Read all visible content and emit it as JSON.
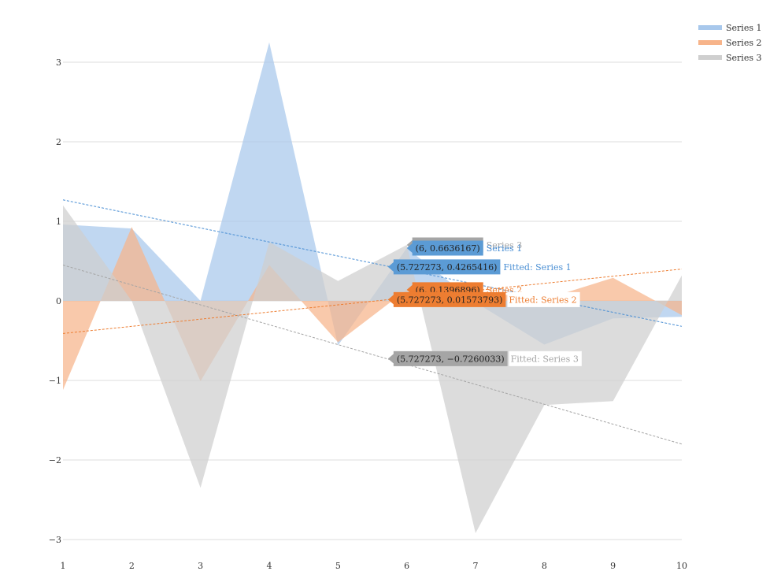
{
  "chart_data": {
    "type": "area",
    "x": [
      1,
      2,
      3,
      4,
      5,
      6,
      7,
      8,
      9,
      10
    ],
    "xlim": [
      1,
      10
    ],
    "ylim": [
      -3.3,
      3.3
    ],
    "y_ticks": [
      3,
      2,
      1,
      0,
      -1,
      -2,
      -3
    ],
    "y_tick_labels": [
      "3",
      "2",
      "1",
      "0",
      "−1",
      "−2",
      "−3"
    ],
    "x_ticks": [
      1,
      2,
      3,
      4,
      5,
      6,
      7,
      8,
      9,
      10
    ],
    "x_tick_labels": [
      "1",
      "2",
      "3",
      "4",
      "5",
      "6",
      "7",
      "8",
      "9",
      "10"
    ],
    "grid": true,
    "legend_position": "top-right",
    "series": [
      {
        "name": "Series 1",
        "color": "#A8C8EC",
        "label_color": "#4A8FD4",
        "values": [
          0.96,
          0.91,
          0.0,
          3.25,
          -0.56,
          0.6636167,
          -0.02,
          -0.55,
          -0.22,
          -0.2
        ]
      },
      {
        "name": "Series 2",
        "color": "#F7B48A",
        "label_color": "#ED7D31",
        "values": [
          -1.12,
          0.93,
          -1.01,
          0.45,
          -0.52,
          0.1396896,
          0.12,
          0.02,
          0.29,
          -0.18
        ]
      },
      {
        "name": "Series 3",
        "color": "#CFCFCF",
        "label_color": "#A5A5A5",
        "values": [
          1.2,
          0.0,
          -2.35,
          0.74,
          0.25,
          0.7030953,
          -2.92,
          -1.31,
          -1.26,
          0.32
        ]
      }
    ],
    "trendlines": [
      {
        "name": "Fitted: Series 1",
        "color": "#4A8FD4",
        "y_at_xmin": 1.27,
        "y_at_xmax": -0.32
      },
      {
        "name": "Fitted: Series 2",
        "color": "#ED7D31",
        "y_at_xmin": -0.41,
        "y_at_xmax": 0.4
      },
      {
        "name": "Fitted: Series 3",
        "color": "#A5A5A5",
        "y_at_xmin": 0.45,
        "y_at_xmax": -1.8
      }
    ],
    "tooltips": [
      {
        "text": "(6, 0.7030953)",
        "name": "Series 3",
        "x": 6,
        "y": 0.7030953,
        "bg": "#A5A5A5",
        "name_color": "#A5A5A5",
        "name_bg": ""
      },
      {
        "text": "(6, 0.6636167)",
        "name": "Series 1",
        "x": 6,
        "y": 0.6636167,
        "bg": "#5B9BD5",
        "name_color": "#4A8FD4",
        "name_bg": ""
      },
      {
        "text": "(5.727273, 0.4265416)",
        "name": "Fitted: Series 1",
        "x": 5.727273,
        "y": 0.4265416,
        "bg": "#5B9BD5",
        "name_color": "#4A8FD4",
        "name_bg": ""
      },
      {
        "text": "(6, 0.1396896)",
        "name": "Series 2",
        "x": 6,
        "y": 0.1396896,
        "bg": "#ED7D31",
        "name_color": "#ED7D31",
        "name_bg": ""
      },
      {
        "text": "(5.727273, 0.01573793)",
        "name": "Fitted: Series 2",
        "x": 5.727273,
        "y": 0.01573793,
        "bg": "#ED7D31",
        "name_color": "#ED7D31",
        "name_bg": "#FFFFFF"
      },
      {
        "text": "(5.727273, −0.7260033)",
        "name": "Fitted: Series 3",
        "x": 5.727273,
        "y": -0.7260033,
        "bg": "#A5A5A5",
        "name_color": "#A5A5A5",
        "name_bg": "#FFFFFF"
      }
    ]
  }
}
